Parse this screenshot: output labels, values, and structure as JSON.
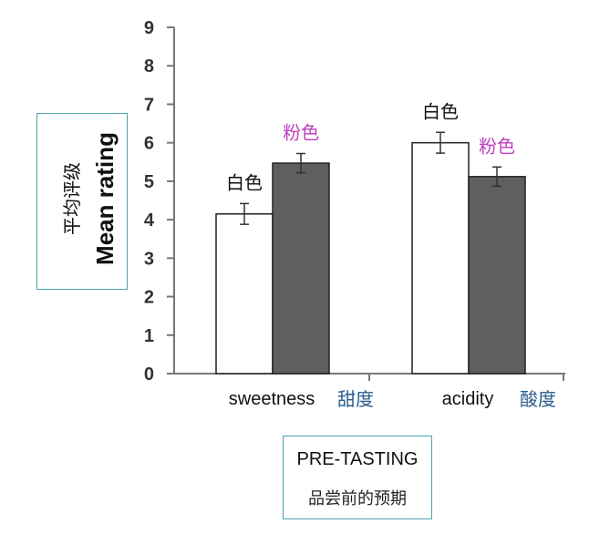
{
  "chart_data": {
    "type": "bar",
    "ylabel": "Mean rating",
    "ylabel_cn": "平均评级",
    "xlabel": "PRE-TASTING",
    "xlabel_cn": "品尝前的预期",
    "ylim": [
      0,
      9
    ],
    "yticks": [
      "0",
      "1",
      "2",
      "3",
      "4",
      "5",
      "6",
      "7",
      "8",
      "9"
    ],
    "categories": [
      {
        "label": "sweetness",
        "label_cn": "甜度"
      },
      {
        "label": "acidity",
        "label_cn": "酸度"
      }
    ],
    "series": [
      {
        "name": "白色",
        "color": "#ffffff",
        "label_color": "#111111",
        "values": [
          4.15,
          6.0
        ],
        "errors": [
          0.27,
          0.27
        ]
      },
      {
        "name": "粉色",
        "color": "#5f5f5f",
        "label_color": "#c040c0",
        "values": [
          5.47,
          5.12
        ],
        "errors": [
          0.25,
          0.25
        ]
      }
    ],
    "grid": false,
    "legend": "none"
  }
}
